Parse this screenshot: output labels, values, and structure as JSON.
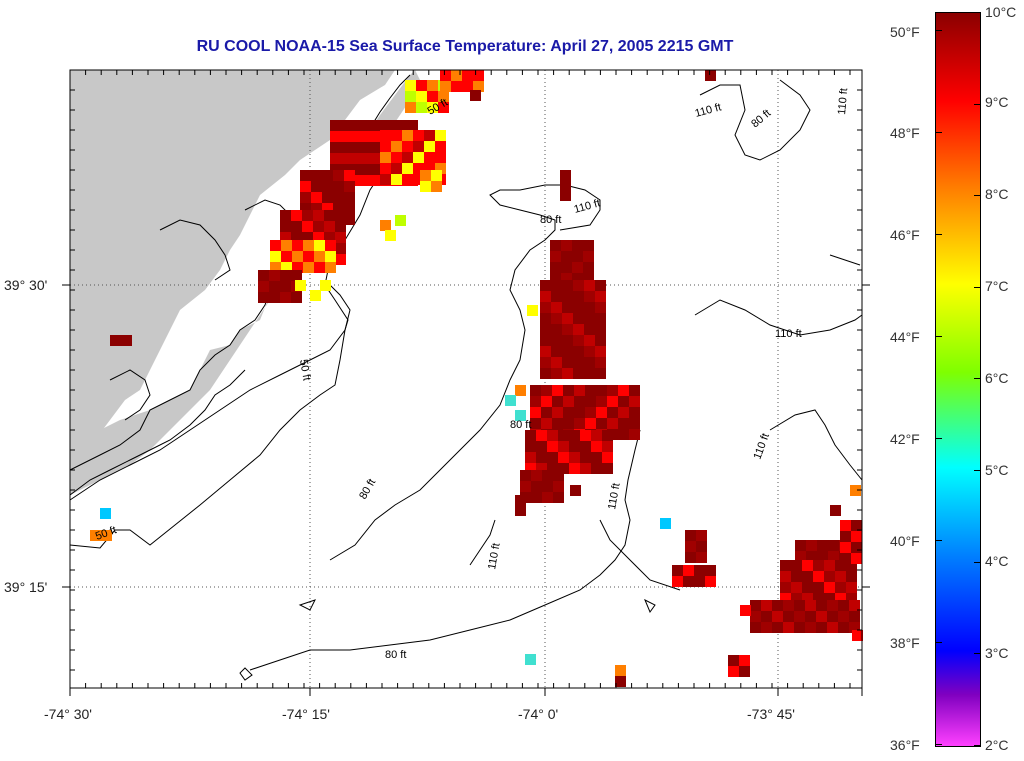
{
  "title": "RU COOL  NOAA-15  Sea Surface Temperature:  April 27, 2005 2215 GMT",
  "lon_labels": [
    "-74° 30'",
    "-74° 15'",
    "-74° 0'",
    "-73° 45'"
  ],
  "lat_labels": [
    "39° 30'",
    "39° 15'"
  ],
  "contour_labels": [
    "110 ft",
    "80 ft",
    "50 ft"
  ],
  "colorbar": {
    "celsius": [
      "10°C",
      "9°C",
      "8°C",
      "7°C",
      "6°C",
      "5°C",
      "4°C",
      "3°C",
      "2°C"
    ],
    "fahrenheit": [
      "50°F",
      "48°F",
      "46°F",
      "44°F",
      "42°F",
      "40°F",
      "38°F",
      "36°F"
    ],
    "colors": [
      "#8b0000",
      "#ff0000",
      "#ff7f00",
      "#ffff00",
      "#7fff00",
      "#00ffff",
      "#0080ff",
      "#0000ff",
      "#8000c0",
      "#ff40ff"
    ]
  },
  "colors": {
    "land": "#c8c8c8",
    "sea": "#ffffff",
    "title": "#1a1aa8"
  }
}
